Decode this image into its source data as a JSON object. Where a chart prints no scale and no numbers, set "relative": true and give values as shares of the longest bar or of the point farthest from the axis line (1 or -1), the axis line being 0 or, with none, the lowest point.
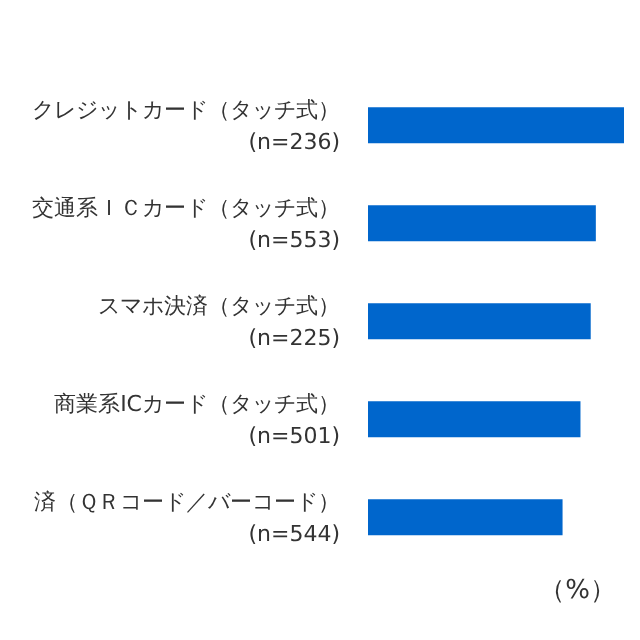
{
  "chart_data": {
    "type": "bar",
    "orientation": "horizontal",
    "relative": true,
    "categories": [
      "クレジットカード（タッチ式）\n(n=236)",
      "交通系ＩＣカード（タッチ式）\n(n=553)",
      "スマホ決済（タッチ式）\n(n=225)",
      "商業系ICカード（タッチ式）\n(n=501)",
      "済（ＱＲコード／バーコード）\n(n=544)"
    ],
    "values": [
      1,
      0.89,
      0.87,
      0.83,
      0.76
    ],
    "color": "#0066cc",
    "annotations": [
      "（%）"
    ]
  }
}
